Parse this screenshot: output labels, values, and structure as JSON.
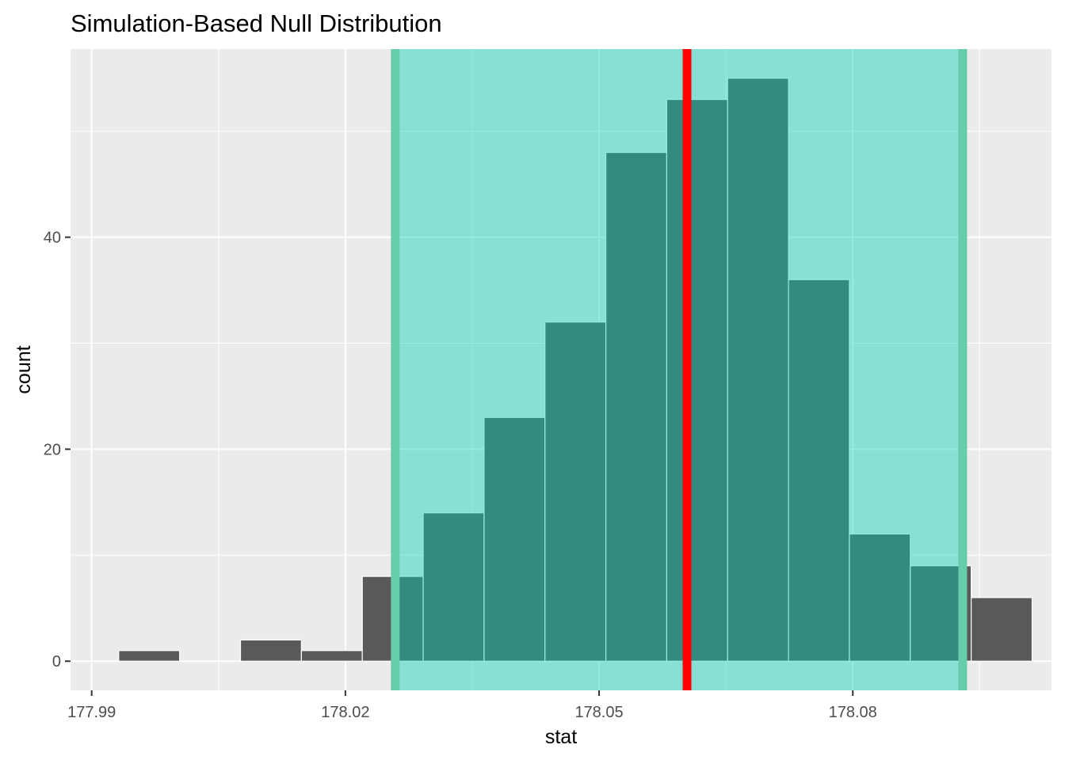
{
  "chart_data": {
    "type": "bar",
    "title": "Simulation-Based Null Distribution",
    "xlabel": "stat",
    "ylabel": "count",
    "xlim": [
      177.9875,
      178.1035
    ],
    "ylim": [
      -2.75,
      57.75
    ],
    "x_ticks": [
      {
        "value": 177.99,
        "label": "177.99"
      },
      {
        "value": 178.02,
        "label": "178.02"
      },
      {
        "value": 178.05,
        "label": "178.05"
      },
      {
        "value": 178.08,
        "label": "178.08"
      }
    ],
    "y_ticks": [
      {
        "value": 0,
        "label": "0"
      },
      {
        "value": 20,
        "label": "20"
      },
      {
        "value": 40,
        "label": "40"
      }
    ],
    "bin_width": 0.0072,
    "bins": [
      {
        "center": 177.9968,
        "count": 1
      },
      {
        "center": 178.004,
        "count": 0
      },
      {
        "center": 178.0112,
        "count": 2
      },
      {
        "center": 178.0184,
        "count": 1
      },
      {
        "center": 178.0256,
        "count": 8
      },
      {
        "center": 178.0328,
        "count": 14
      },
      {
        "center": 178.04,
        "count": 23
      },
      {
        "center": 178.0472,
        "count": 32
      },
      {
        "center": 178.0544,
        "count": 48
      },
      {
        "center": 178.0616,
        "count": 53
      },
      {
        "center": 178.0688,
        "count": 55
      },
      {
        "center": 178.076,
        "count": 36
      },
      {
        "center": 178.0832,
        "count": 12
      },
      {
        "center": 178.0904,
        "count": 9
      },
      {
        "center": 178.0976,
        "count": 6
      }
    ],
    "shaded_interval": [
      178.0259,
      178.093
    ],
    "observed_stat": 178.0604,
    "colors": {
      "panel_background": "#ebebeb",
      "grid": "#ffffff",
      "bar_fill": "#595959",
      "bar_outline": "#ffffff",
      "shade_fill": "#00d0b8",
      "shade_opacity": 0.42,
      "interval_line": "#66cdaa",
      "observed_line": "#ff0000"
    },
    "legend": "none",
    "grid": true
  }
}
